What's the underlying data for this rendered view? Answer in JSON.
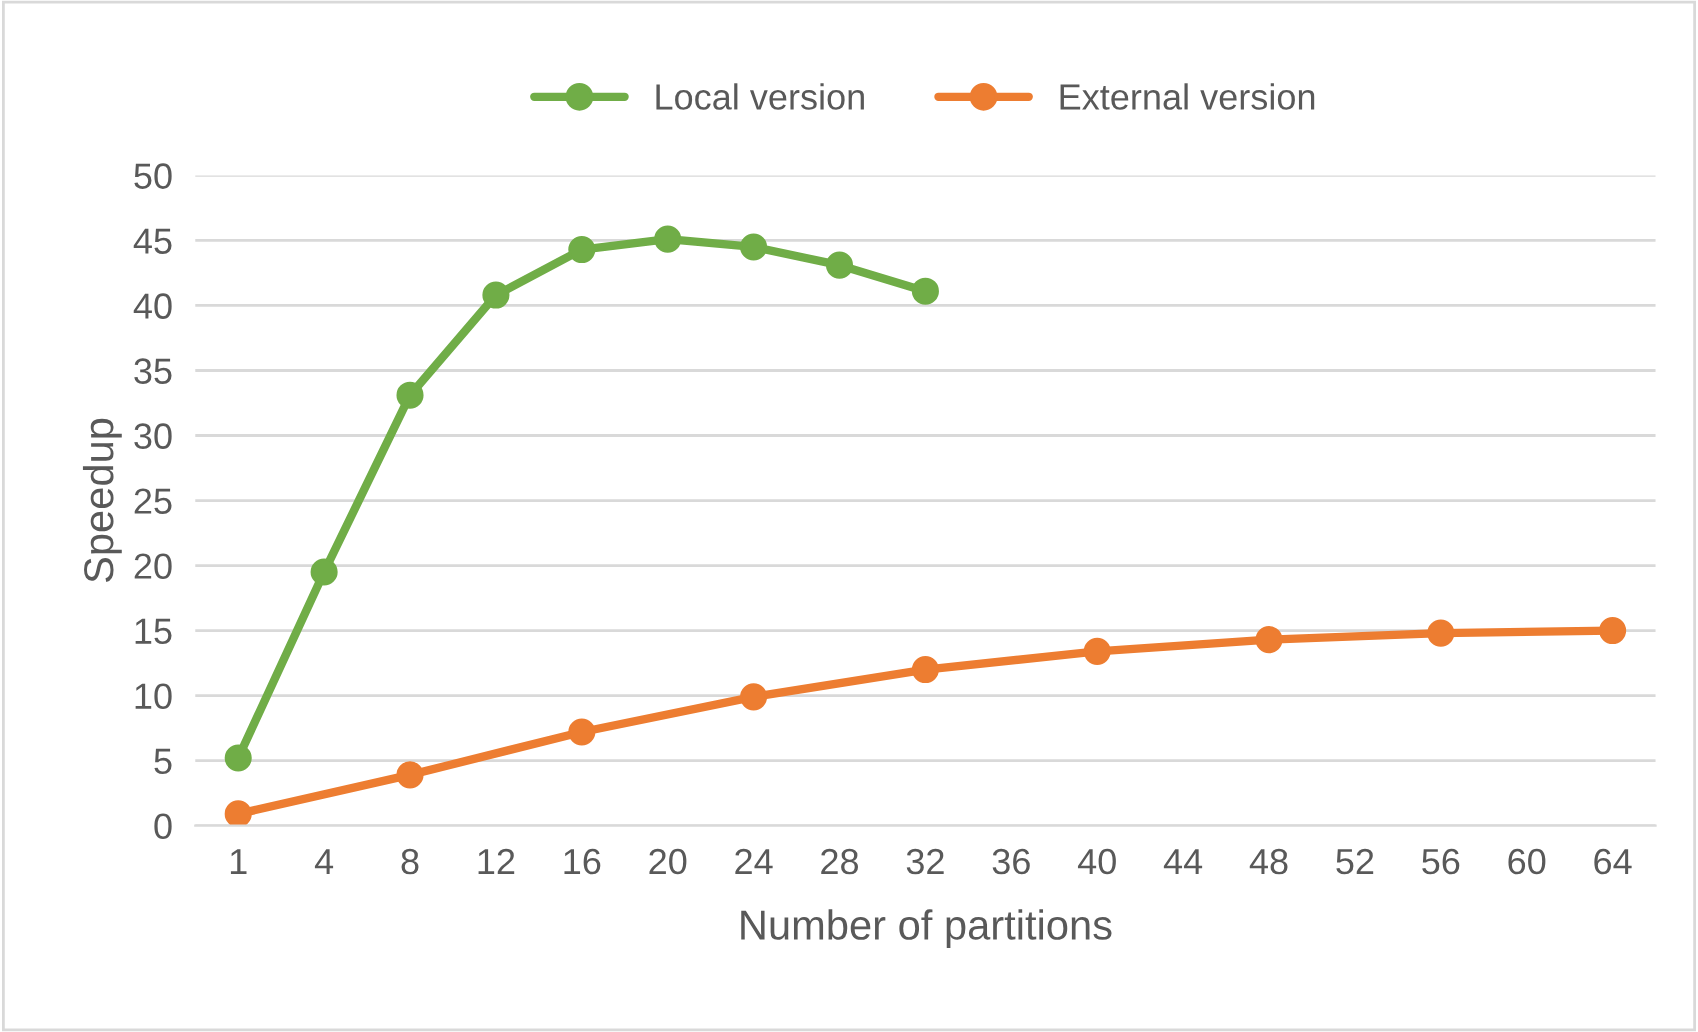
{
  "chart_data": {
    "type": "line",
    "xlabel": "Number of partitions",
    "ylabel": "Speedup",
    "categories": [
      "1",
      "4",
      "8",
      "12",
      "16",
      "20",
      "24",
      "28",
      "32",
      "36",
      "40",
      "44",
      "48",
      "52",
      "56",
      "60",
      "64"
    ],
    "series": [
      {
        "name": "Local version",
        "color": "#70ad47",
        "values": [
          5.2,
          19.5,
          33.1,
          40.8,
          44.3,
          45.1,
          44.5,
          43.1,
          41.1,
          null,
          null,
          null,
          null,
          null,
          null,
          null,
          null
        ]
      },
      {
        "name": "External version",
        "color": "#ed7d31",
        "values": [
          0.9,
          null,
          3.9,
          null,
          7.2,
          null,
          9.9,
          null,
          12.0,
          null,
          13.4,
          null,
          14.3,
          null,
          14.8,
          null,
          15.0
        ]
      }
    ],
    "ylim": [
      0,
      50
    ],
    "yticks": [
      0,
      5,
      10,
      15,
      20,
      25,
      30,
      35,
      40,
      45,
      50
    ],
    "grid": "y",
    "legend": "top",
    "marker": "circle",
    "line_style": "solid"
  }
}
